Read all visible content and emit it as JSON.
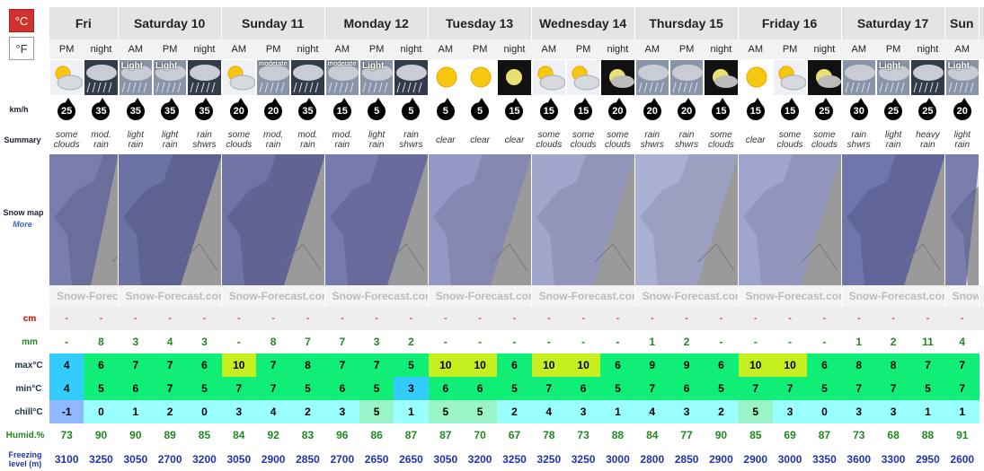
{
  "units": {
    "celsius": "°C",
    "fahrenheit": "°F"
  },
  "days": [
    {
      "name": "Fri",
      "periods": [
        "PM",
        "night"
      ]
    },
    {
      "name": "Saturday 10",
      "periods": [
        "AM",
        "PM",
        "night"
      ]
    },
    {
      "name": "Sunday 11",
      "periods": [
        "AM",
        "PM",
        "night"
      ]
    },
    {
      "name": "Monday 12",
      "periods": [
        "AM",
        "PM",
        "night"
      ]
    },
    {
      "name": "Tuesday 13",
      "periods": [
        "AM",
        "PM",
        "night"
      ]
    },
    {
      "name": "Wednesday 14",
      "periods": [
        "AM",
        "PM",
        "night"
      ]
    },
    {
      "name": "Thursday 15",
      "periods": [
        "AM",
        "PM",
        "night"
      ]
    },
    {
      "name": "Friday 16",
      "periods": [
        "AM",
        "PM",
        "night"
      ]
    },
    {
      "name": "Saturday 17",
      "periods": [
        "AM",
        "PM",
        "night"
      ]
    },
    {
      "name": "Sun",
      "periods": [
        "AM"
      ]
    }
  ],
  "row_labels": {
    "wind": "km/h",
    "summary": "Summary",
    "snow_map": "Snow map",
    "more": "More",
    "snow": "cm",
    "rain": "mm",
    "max": "max°C",
    "min": "min°C",
    "chill": "chill°C",
    "humidity": "Humid.%",
    "freezing": "Freezing level (m)"
  },
  "logo_text": "Snow-Forecast.com",
  "icon_labels": [
    null,
    null,
    "Light",
    "Light",
    null,
    null,
    "moderate",
    null,
    "moderate",
    "Light",
    null,
    null,
    null,
    null,
    null,
    null,
    null,
    null,
    null,
    null,
    null,
    null,
    null,
    null,
    "Light",
    null,
    "Light"
  ],
  "wind": [
    25,
    35,
    35,
    35,
    35,
    20,
    20,
    35,
    15,
    5,
    5,
    5,
    5,
    15,
    15,
    15,
    20,
    20,
    20,
    15,
    15,
    15,
    25,
    30,
    25,
    25,
    20
  ],
  "summary": [
    "some clouds",
    "mod. rain",
    "light rain",
    "light rain",
    "rain shwrs",
    "some clouds",
    "mod. rain",
    "mod. rain",
    "mod. rain",
    "light rain",
    "rain shwrs",
    "clear",
    "clear",
    "clear",
    "some clouds",
    "some clouds",
    "some clouds",
    "rain shwrs",
    "rain shwrs",
    "some clouds",
    "clear",
    "some clouds",
    "some clouds",
    "rain shwrs",
    "light rain",
    "heavy rain",
    "light rain"
  ],
  "snow": [
    "-",
    "-",
    "-",
    "-",
    "-",
    "-",
    "-",
    "-",
    "-",
    "-",
    "-",
    "-",
    "-",
    "-",
    "-",
    "-",
    "-",
    "-",
    "-",
    "-",
    "-",
    "-",
    "-",
    "-",
    "-",
    "-",
    "-"
  ],
  "rain": [
    "-",
    8,
    3,
    4,
    3,
    "-",
    8,
    7,
    7,
    3,
    2,
    "-",
    "-",
    "-",
    "-",
    "-",
    "-",
    1,
    2,
    "-",
    "-",
    "-",
    "-",
    1,
    2,
    11,
    4
  ],
  "max": [
    4,
    6,
    7,
    7,
    6,
    10,
    7,
    8,
    7,
    7,
    5,
    10,
    10,
    6,
    10,
    10,
    6,
    9,
    9,
    6,
    10,
    10,
    6,
    8,
    8,
    7,
    7
  ],
  "min": [
    4,
    5,
    6,
    7,
    5,
    7,
    7,
    5,
    6,
    5,
    3,
    6,
    6,
    5,
    7,
    6,
    5,
    7,
    6,
    5,
    7,
    7,
    5,
    7,
    7,
    5,
    7
  ],
  "chill": [
    -1,
    0,
    1,
    2,
    0,
    3,
    4,
    2,
    3,
    5,
    1,
    5,
    5,
    2,
    4,
    3,
    1,
    4,
    3,
    2,
    5,
    3,
    0,
    3,
    3,
    1,
    1
  ],
  "humidity": [
    73,
    90,
    90,
    89,
    85,
    84,
    92,
    83,
    96,
    86,
    87,
    87,
    70,
    67,
    78,
    73,
    88,
    84,
    77,
    90,
    85,
    69,
    87,
    73,
    68,
    88,
    91
  ],
  "freezing": [
    3100,
    3250,
    3050,
    2700,
    3200,
    3050,
    2900,
    2850,
    2700,
    2650,
    2650,
    3050,
    3200,
    3250,
    3250,
    3250,
    3000,
    2800,
    2850,
    2900,
    2900,
    3000,
    3350,
    3600,
    3300,
    2950,
    2600
  ]
}
